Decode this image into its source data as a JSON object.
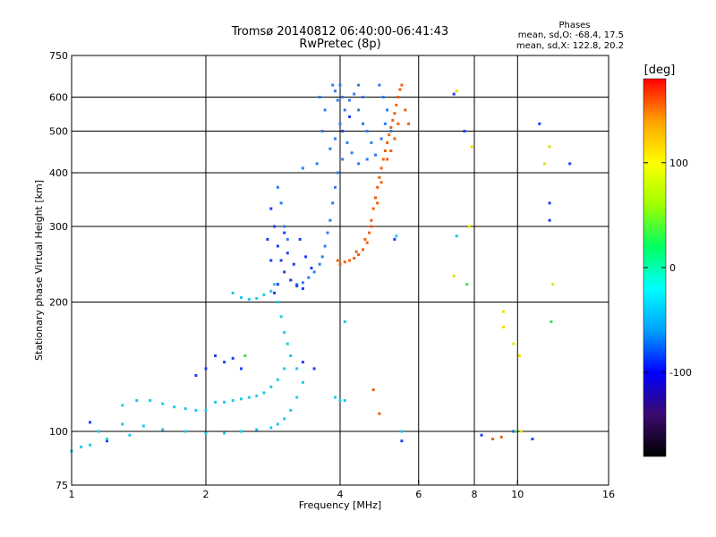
{
  "chart_data": {
    "type": "scatter",
    "title": "Tromsø 20140812 06:40:00-06:41:43",
    "subtitle": "RwPretec (8p)",
    "xlabel": "Frequency [MHz]",
    "ylabel": "Stationary phase Virtual Height [km]",
    "x_scale": "log",
    "y_scale": "log",
    "xlim": [
      1,
      16
    ],
    "ylim": [
      75,
      750
    ],
    "x_ticks": [
      1,
      2,
      4,
      6,
      8,
      10,
      16
    ],
    "y_ticks": [
      75,
      100,
      200,
      300,
      400,
      500,
      600,
      750
    ],
    "x_tick_labels": [
      "1",
      "2",
      "4",
      "6",
      "8",
      "10",
      "16"
    ],
    "y_tick_labels": [
      "75",
      "100",
      "200",
      "300",
      "400",
      "500",
      "600",
      "750"
    ],
    "grid": true,
    "stats": {
      "heading": "Phases",
      "line_o": "mean, sd,O: -68.4, 17.5",
      "line_x": "mean, sd,X: 122.8, 20.2"
    },
    "colorbar": {
      "label": "[deg]",
      "range": [
        -180,
        180
      ],
      "ticks": [
        -100,
        0,
        100
      ],
      "tick_labels": [
        "-100",
        "0",
        "100"
      ],
      "colormap": "rainbow",
      "stops": [
        "#000000",
        "#3b0a6e",
        "#0000ff",
        "#00a0ff",
        "#00ffff",
        "#00ff60",
        "#a0ff00",
        "#ffff00",
        "#ffa000",
        "#ff0000"
      ]
    },
    "series": [
      {
        "color": "#2c7df0",
        "phase_deg": -80,
        "points": [
          [
            3.85,
            640
          ],
          [
            3.9,
            620
          ],
          [
            3.95,
            590
          ],
          [
            4.0,
            640
          ],
          [
            4.05,
            600
          ],
          [
            4.1,
            560
          ],
          [
            4.0,
            520
          ],
          [
            3.9,
            480
          ],
          [
            3.8,
            455
          ],
          [
            4.2,
            590
          ],
          [
            4.3,
            610
          ],
          [
            4.4,
            560
          ],
          [
            4.5,
            520
          ],
          [
            4.6,
            500
          ],
          [
            4.7,
            470
          ],
          [
            4.8,
            440
          ],
          [
            4.6,
            430
          ],
          [
            4.4,
            420
          ],
          [
            4.25,
            445
          ],
          [
            4.15,
            470
          ],
          [
            4.05,
            430
          ],
          [
            3.95,
            400
          ],
          [
            3.9,
            370
          ],
          [
            3.85,
            340
          ],
          [
            3.8,
            310
          ],
          [
            3.75,
            290
          ],
          [
            3.7,
            270
          ],
          [
            3.65,
            255
          ],
          [
            3.6,
            245
          ],
          [
            3.5,
            235
          ],
          [
            3.4,
            228
          ],
          [
            3.3,
            222
          ],
          [
            3.2,
            220
          ],
          [
            3.1,
            225
          ],
          [
            4.9,
            640
          ],
          [
            5.0,
            600
          ],
          [
            5.1,
            560
          ],
          [
            5.05,
            520
          ],
          [
            4.95,
            480
          ],
          [
            5.2,
            500
          ],
          [
            3.7,
            560
          ],
          [
            3.6,
            600
          ],
          [
            3.65,
            500
          ],
          [
            3.55,
            420
          ],
          [
            3.3,
            410
          ],
          [
            4.4,
            640
          ],
          [
            4.5,
            600
          ],
          [
            3.0,
            300
          ],
          [
            2.95,
            340
          ],
          [
            2.9,
            370
          ],
          [
            3.05,
            280
          ]
        ]
      },
      {
        "color": "#1a3ff0",
        "phase_deg": -100,
        "points": [
          [
            2.8,
            330
          ],
          [
            2.85,
            300
          ],
          [
            2.9,
            270
          ],
          [
            2.95,
            250
          ],
          [
            3.0,
            235
          ],
          [
            3.1,
            225
          ],
          [
            3.2,
            218
          ],
          [
            3.3,
            215
          ],
          [
            3.0,
            290
          ],
          [
            3.05,
            260
          ],
          [
            3.15,
            245
          ],
          [
            2.9,
            220
          ],
          [
            2.85,
            210
          ],
          [
            3.25,
            280
          ],
          [
            3.35,
            255
          ],
          [
            3.45,
            240
          ],
          [
            2.75,
            280
          ],
          [
            2.8,
            250
          ],
          [
            4.05,
            500
          ],
          [
            4.2,
            540
          ],
          [
            2.1,
            150
          ],
          [
            2.2,
            145
          ],
          [
            2.0,
            140
          ],
          [
            1.9,
            135
          ],
          [
            2.3,
            148
          ],
          [
            2.4,
            140
          ],
          [
            3.5,
            140
          ],
          [
            3.3,
            145
          ],
          [
            1.1,
            105
          ],
          [
            1.2,
            95
          ],
          [
            9.8,
            100
          ],
          [
            7.2,
            610
          ],
          [
            7.6,
            500
          ],
          [
            11.2,
            520
          ],
          [
            13.1,
            420
          ],
          [
            11.8,
            340
          ],
          [
            11.8,
            310
          ],
          [
            5.3,
            280
          ],
          [
            5.5,
            95
          ],
          [
            8.3,
            98
          ],
          [
            10.8,
            96
          ]
        ]
      },
      {
        "color": "#20c8e8",
        "phase_deg": -40,
        "points": [
          [
            2.3,
            210
          ],
          [
            2.4,
            205
          ],
          [
            2.5,
            203
          ],
          [
            2.6,
            204
          ],
          [
            2.7,
            208
          ],
          [
            2.8,
            212
          ],
          [
            2.85,
            220
          ],
          [
            2.9,
            200
          ],
          [
            2.95,
            185
          ],
          [
            3.0,
            170
          ],
          [
            3.05,
            160
          ],
          [
            3.1,
            150
          ],
          [
            3.0,
            140
          ],
          [
            2.9,
            132
          ],
          [
            2.8,
            127
          ],
          [
            2.7,
            123
          ],
          [
            2.6,
            121
          ],
          [
            2.5,
            120
          ],
          [
            2.4,
            119
          ],
          [
            2.3,
            118
          ],
          [
            2.2,
            117
          ],
          [
            2.1,
            117
          ],
          [
            2.0,
            112
          ],
          [
            1.9,
            112
          ],
          [
            1.8,
            113
          ],
          [
            1.7,
            114
          ],
          [
            1.6,
            116
          ],
          [
            1.5,
            118
          ],
          [
            1.4,
            118
          ],
          [
            1.3,
            115
          ],
          [
            3.2,
            140
          ],
          [
            3.3,
            130
          ],
          [
            3.2,
            120
          ],
          [
            3.1,
            112
          ],
          [
            3.0,
            107
          ],
          [
            2.9,
            104
          ],
          [
            2.8,
            102
          ],
          [
            2.6,
            101
          ],
          [
            2.4,
            100
          ],
          [
            2.2,
            99
          ],
          [
            2.0,
            99
          ],
          [
            1.8,
            100
          ],
          [
            1.6,
            101
          ],
          [
            1.45,
            103
          ],
          [
            1.3,
            104
          ],
          [
            1.15,
            100
          ],
          [
            1.05,
            92
          ],
          [
            1.0,
            90
          ],
          [
            1.1,
            93
          ],
          [
            1.2,
            96
          ],
          [
            1.35,
            98
          ],
          [
            3.9,
            120
          ],
          [
            4.0,
            118
          ],
          [
            4.1,
            118
          ],
          [
            5.5,
            100
          ],
          [
            4.1,
            180
          ],
          [
            7.3,
            285
          ],
          [
            5.35,
            285
          ]
        ]
      },
      {
        "color": "#f06010",
        "phase_deg": 150,
        "points": [
          [
            4.2,
            250
          ],
          [
            4.3,
            253
          ],
          [
            4.4,
            258
          ],
          [
            4.5,
            265
          ],
          [
            4.6,
            275
          ],
          [
            4.65,
            290
          ],
          [
            4.7,
            310
          ],
          [
            4.75,
            330
          ],
          [
            4.8,
            350
          ],
          [
            4.85,
            370
          ],
          [
            4.9,
            390
          ],
          [
            4.95,
            410
          ],
          [
            5.0,
            430
          ],
          [
            5.05,
            450
          ],
          [
            5.1,
            470
          ],
          [
            5.15,
            490
          ],
          [
            5.2,
            510
          ],
          [
            5.25,
            530
          ],
          [
            5.3,
            550
          ],
          [
            5.35,
            575
          ],
          [
            5.4,
            600
          ],
          [
            5.45,
            625
          ],
          [
            5.5,
            640
          ],
          [
            5.4,
            520
          ],
          [
            5.3,
            480
          ],
          [
            5.2,
            450
          ],
          [
            5.1,
            430
          ],
          [
            4.95,
            380
          ],
          [
            4.85,
            340
          ],
          [
            4.7,
            300
          ],
          [
            4.55,
            280
          ],
          [
            4.35,
            262
          ],
          [
            4.1,
            248
          ],
          [
            4.0,
            245
          ],
          [
            3.95,
            250
          ],
          [
            5.6,
            560
          ],
          [
            5.7,
            520
          ],
          [
            8.8,
            96
          ],
          [
            9.2,
            97
          ],
          [
            4.9,
            110
          ],
          [
            4.75,
            125
          ]
        ]
      },
      {
        "color": "#e8e000",
        "phase_deg": 100,
        "points": [
          [
            7.3,
            620
          ],
          [
            7.9,
            460
          ],
          [
            11.5,
            420
          ],
          [
            11.8,
            460
          ],
          [
            7.2,
            230
          ],
          [
            7.8,
            300
          ],
          [
            9.3,
            190
          ],
          [
            9.3,
            175
          ],
          [
            9.8,
            160
          ],
          [
            10.1,
            150
          ],
          [
            10.2,
            100
          ],
          [
            12.0,
            220
          ]
        ]
      },
      {
        "color": "#40e040",
        "phase_deg": 30,
        "points": [
          [
            7.7,
            220
          ],
          [
            11.9,
            180
          ],
          [
            2.45,
            150
          ],
          [
            9.9,
            100
          ]
        ]
      }
    ]
  }
}
